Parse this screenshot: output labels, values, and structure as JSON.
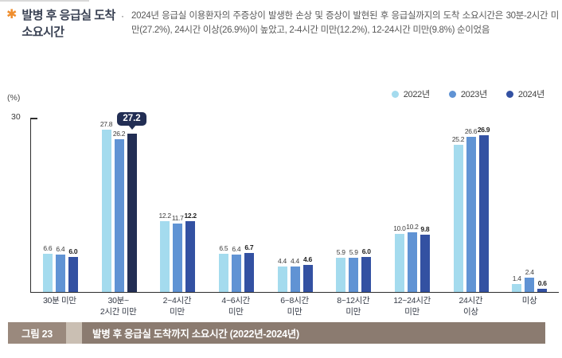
{
  "header": {
    "marker": "✱",
    "title_line1": "발병 후 응급실 도착",
    "title_line2": "소요시간",
    "bullet": "·",
    "description": "2024년 응급실 이용환자의 주증상이 발생한 손상 및 증상이 발현된 후 응급실까지의 도착 소요시간은 30분-2시간 미만(27.2%), 24시간 이상(26.9%)이 높았고, 2-4시간 미만(12.2%), 12-24시간 미만(9.8%) 순이었음"
  },
  "chart_data": {
    "type": "bar",
    "unit_label": "(%)",
    "y_axis": {
      "max": 30,
      "tick_label": "30"
    },
    "grid": false,
    "legend_position": "top-right",
    "categories": [
      "30분 미만",
      "30분~\n2시간 미만",
      "2~4시간\n미만",
      "4~6시간\n미만",
      "6~8시간\n미만",
      "8~12시간\n미만",
      "12~24시간\n미만",
      "24시간\n이상",
      "미상"
    ],
    "series": [
      {
        "name": "2022년",
        "color": "#a4dbee",
        "values": [
          6.6,
          27.8,
          12.2,
          6.5,
          4.4,
          5.9,
          10.0,
          25.2,
          1.4
        ]
      },
      {
        "name": "2023년",
        "color": "#6093d4",
        "values": [
          6.4,
          26.2,
          11.7,
          6.4,
          4.4,
          5.9,
          10.2,
          26.6,
          2.4
        ]
      },
      {
        "name": "2024년",
        "color": "#3351a2",
        "values": [
          6.0,
          27.2,
          12.2,
          6.7,
          4.6,
          6.0,
          9.8,
          26.9,
          0.6
        ]
      }
    ],
    "highlight": {
      "series_index": 2,
      "category_index": 1,
      "label": "27.2",
      "color": "#222e54"
    }
  },
  "caption": {
    "figure_label": "그림 23",
    "text": "발병 후 응급실 도착까지 소요시간 (2022년-2024년)"
  }
}
